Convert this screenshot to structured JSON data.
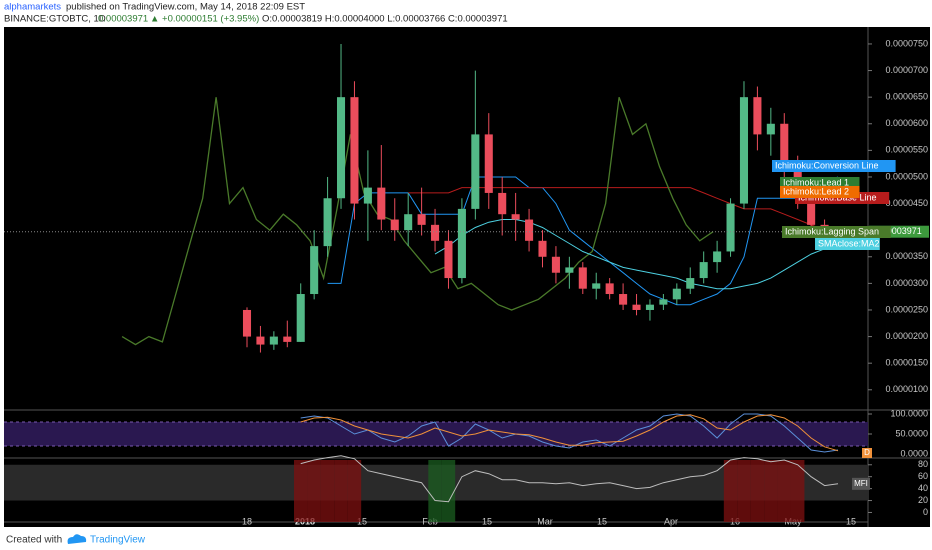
{
  "header": {
    "author": "alphamarkets",
    "published": "published on TradingView.com, May 14, 2018 22:09 EST",
    "symbol": "BINANCE:GTOBTC, 1D",
    "last": "0.00003971",
    "change": "▲ +0.00000151 (+3.95%)",
    "ohlc": "O:0.00003819 H:0.00004000 L:0.00003766 C:0.00003971"
  },
  "chart_data": {
    "type": "candlestick",
    "xtick_labels": [
      "18",
      "2018",
      "15",
      "Feb",
      "15",
      "Mar",
      "15",
      "Apr",
      "16",
      "May",
      "15"
    ],
    "open": [
      2.5e-05,
      2e-05,
      1.85e-05,
      2e-05,
      1.9e-05,
      2.8e-05,
      3.7e-05,
      4.6e-05,
      6.5e-05,
      4.5e-05,
      4.8e-05,
      4.2e-05,
      4e-05,
      4.3e-05,
      4.1e-05,
      3.8e-05,
      3.1e-05,
      4.4e-05,
      5.8e-05,
      4.7e-05,
      4.3e-05,
      4.2e-05,
      3.8e-05,
      3.5e-05,
      3.2e-05,
      3.3e-05,
      2.9e-05,
      3e-05,
      2.8e-05,
      2.6e-05,
      2.5e-05,
      2.6e-05,
      2.7e-05,
      2.9e-05,
      3.1e-05,
      3.4e-05,
      3.6e-05,
      4.5e-05,
      6.5e-05,
      5.8e-05,
      6e-05,
      5.2e-05,
      4.6e-05,
      4.1e-05,
      3.819e-05
    ],
    "high": [
      2.55e-05,
      2.2e-05,
      2.1e-05,
      2.3e-05,
      3e-05,
      4e-05,
      5e-05,
      7.5e-05,
      6.8e-05,
      5.5e-05,
      5.6e-05,
      4.6e-05,
      4.7e-05,
      4.8e-05,
      4.4e-05,
      4e-05,
      4.6e-05,
      7e-05,
      6.2e-05,
      5e-05,
      4.7e-05,
      4.4e-05,
      4e-05,
      3.7e-05,
      3.5e-05,
      3.4e-05,
      3.2e-05,
      3.1e-05,
      3e-05,
      2.8e-05,
      2.7e-05,
      2.8e-05,
      3e-05,
      3.3e-05,
      3.6e-05,
      3.8e-05,
      4.6e-05,
      6.8e-05,
      6.7e-05,
      6.3e-05,
      6.2e-05,
      5.4e-05,
      4.8e-05,
      4.2e-05,
      4e-05
    ],
    "low": [
      1.8e-05,
      1.7e-05,
      1.75e-05,
      1.8e-05,
      1.9e-05,
      2.7e-05,
      3.5e-05,
      4.4e-05,
      4.2e-05,
      3.8e-05,
      4e-05,
      3.8e-05,
      3.7e-05,
      3.9e-05,
      3.6e-05,
      2.9e-05,
      3e-05,
      4.2e-05,
      4.4e-05,
      3.9e-05,
      3.8e-05,
      3.6e-05,
      3.3e-05,
      3e-05,
      2.9e-05,
      2.8e-05,
      2.7e-05,
      2.7e-05,
      2.5e-05,
      2.4e-05,
      2.3e-05,
      2.5e-05,
      2.6e-05,
      2.8e-05,
      3e-05,
      3.2e-05,
      3.5e-05,
      4.4e-05,
      5.5e-05,
      5.4e-05,
      5e-05,
      4.4e-05,
      4e-05,
      3.7e-05,
      3.766e-05
    ],
    "close": [
      2e-05,
      1.85e-05,
      2e-05,
      1.9e-05,
      2.8e-05,
      3.7e-05,
      4.6e-05,
      6.5e-05,
      4.5e-05,
      4.8e-05,
      4.2e-05,
      4e-05,
      4.3e-05,
      4.1e-05,
      3.8e-05,
      3.1e-05,
      4.4e-05,
      5.8e-05,
      4.7e-05,
      4.3e-05,
      4.2e-05,
      3.8e-05,
      3.5e-05,
      3.2e-05,
      3.3e-05,
      2.9e-05,
      3e-05,
      2.8e-05,
      2.6e-05,
      2.5e-05,
      2.6e-05,
      2.7e-05,
      2.9e-05,
      3.1e-05,
      3.4e-05,
      3.6e-05,
      4.5e-05,
      6.5e-05,
      5.8e-05,
      6e-05,
      5.2e-05,
      4.6e-05,
      4.1e-05,
      3.8e-05,
      3.971e-05
    ],
    "up_color": "#53b987",
    "down_color": "#eb4d5c",
    "ylim": [
      6.2e-06,
      7.8e-05
    ],
    "yticks": [
      {
        "value": 1e-05,
        "label": "0.0000100"
      },
      {
        "value": 1.5e-05,
        "label": "0.0000150"
      },
      {
        "value": 2e-05,
        "label": "0.0000200"
      },
      {
        "value": 2.5e-05,
        "label": "0.0000250"
      },
      {
        "value": 3e-05,
        "label": "0.0000300"
      },
      {
        "value": 3.5e-05,
        "label": "0.0000350"
      },
      {
        "value": 4e-05,
        "label": "0.0000400"
      },
      {
        "value": 4.5e-05,
        "label": "0.0000450"
      },
      {
        "value": 5e-05,
        "label": "0.0000500"
      },
      {
        "value": 5.5e-05,
        "label": "0.0000550"
      },
      {
        "value": 6e-05,
        "label": "0.0000600"
      },
      {
        "value": 6.5e-05,
        "label": "0.0000650"
      },
      {
        "value": 7e-05,
        "label": "0.0000700"
      },
      {
        "value": 7.5e-05,
        "label": "0.0000750"
      }
    ],
    "last_price": {
      "value": 3.971e-05,
      "label": "0.00003971",
      "color": "#3d9a3d"
    },
    "lines": [
      {
        "name": "Ichimoku:Conversion Line",
        "color": "#2196f3",
        "values": [
          null,
          null,
          null,
          null,
          null,
          null,
          3e-05,
          3e-05,
          4.5e-05,
          4.7e-05,
          4.7e-05,
          4.7e-05,
          4.7e-05,
          4.3e-05,
          4.3e-05,
          4.3e-05,
          4.3e-05,
          5e-05,
          5e-05,
          5e-05,
          5e-05,
          4.8e-05,
          4.8e-05,
          4.5e-05,
          4e-05,
          3.8e-05,
          3.6e-05,
          3.4e-05,
          3.2e-05,
          3e-05,
          2.8e-05,
          2.7e-05,
          2.6e-05,
          2.6e-05,
          2.7e-05,
          2.8e-05,
          3e-05,
          3.5e-05,
          4.6e-05,
          4.6e-05,
          4.6e-05,
          4.6e-05,
          4.7e-05,
          4.9e-05,
          5e-05
        ]
      },
      {
        "name": "Ichimoku:Base Line",
        "color": "#b71c1c",
        "values": [
          null,
          null,
          null,
          null,
          null,
          null,
          null,
          null,
          null,
          null,
          null,
          null,
          4.7e-05,
          4.7e-05,
          4.7e-05,
          4.7e-05,
          4.8e-05,
          4.8e-05,
          4.8e-05,
          4.8e-05,
          4.8e-05,
          4.8e-05,
          4.8e-05,
          4.8e-05,
          4.8e-05,
          4.8e-05,
          4.8e-05,
          4.8e-05,
          4.8e-05,
          4.8e-05,
          4.8e-05,
          4.8e-05,
          4.8e-05,
          4.8e-05,
          4.7e-05,
          4.6e-05,
          4.5e-05,
          4.4e-05,
          4.4e-05,
          4.4e-05,
          4.3e-05,
          4.2e-05,
          4.1e-05,
          4e-05,
          3.8e-05
        ]
      },
      {
        "name": "Ichimoku:Lagging Span",
        "color": "#4a7a2a",
        "values": [
          2e-05,
          1.85e-05,
          2e-05,
          1.9e-05,
          2.8e-05,
          3.7e-05,
          4.6e-05,
          6.5e-05,
          4.5e-05,
          4.8e-05,
          4.2e-05,
          4e-05,
          4.3e-05,
          4.1e-05,
          3.8e-05,
          3.1e-05,
          4.4e-05,
          5.8e-05,
          4.7e-05,
          4.3e-05,
          4.2e-05,
          3.8e-05,
          3.5e-05,
          3.2e-05,
          3.3e-05,
          2.9e-05,
          3e-05,
          2.8e-05,
          2.6e-05,
          2.5e-05,
          2.6e-05,
          2.7e-05,
          2.9e-05,
          3.1e-05,
          3.4e-05,
          3.6e-05,
          4.5e-05,
          6.5e-05,
          5.8e-05,
          6e-05,
          5.2e-05,
          4.6e-05,
          4.1e-05,
          3.8e-05,
          3.971e-05
        ]
      },
      {
        "name": "SMAclose:MA2",
        "color": "#4dd0e1",
        "values": [
          null,
          null,
          null,
          null,
          null,
          null,
          null,
          null,
          null,
          null,
          null,
          null,
          null,
          null,
          3.55e-05,
          3.7e-05,
          3.9e-05,
          4.05e-05,
          4.15e-05,
          4.2e-05,
          4.2e-05,
          4.15e-05,
          4.05e-05,
          3.9e-05,
          3.75e-05,
          3.6e-05,
          3.5e-05,
          3.4e-05,
          3.3e-05,
          3.25e-05,
          3.2e-05,
          3.15e-05,
          3.1e-05,
          3e-05,
          2.95e-05,
          2.9e-05,
          2.9e-05,
          2.95e-05,
          3e-05,
          3.1e-05,
          3.25e-05,
          3.4e-05,
          3.55e-05,
          3.65e-05,
          3.7e-05
        ]
      }
    ],
    "cloud_tags": [
      {
        "name": "Ichimoku:Lead 1",
        "color": "#2e7d32"
      },
      {
        "name": "Ichimoku:Lead 2",
        "color": "#ef6c00"
      }
    ]
  },
  "rsi": {
    "label": "D",
    "ylim": [
      -10,
      105
    ],
    "yticks": [
      {
        "value": 100,
        "label": "100.0000"
      },
      {
        "value": 50,
        "label": "50.0000"
      },
      {
        "value": 0,
        "label": "0.0000"
      }
    ],
    "band": [
      20,
      80
    ],
    "band_color": "#2a1850",
    "series": [
      {
        "color": "#5b8fd9",
        "values": [
          null,
          null,
          null,
          null,
          90,
          95,
          90,
          70,
          50,
          60,
          40,
          30,
          45,
          70,
          80,
          20,
          40,
          75,
          60,
          40,
          50,
          45,
          30,
          20,
          15,
          30,
          35,
          20,
          40,
          60,
          70,
          95,
          100,
          95,
          70,
          40,
          75,
          100,
          100,
          95,
          70,
          40,
          10,
          5,
          10
        ]
      },
      {
        "color": "#f0913a",
        "values": [
          null,
          null,
          null,
          null,
          80,
          90,
          92,
          85,
          70,
          60,
          50,
          45,
          40,
          50,
          65,
          55,
          45,
          50,
          60,
          55,
          50,
          48,
          40,
          30,
          22,
          22,
          28,
          30,
          32,
          45,
          60,
          80,
          95,
          98,
          88,
          65,
          60,
          80,
          95,
          98,
          90,
          70,
          40,
          18,
          8
        ]
      }
    ]
  },
  "mfi": {
    "label": "MFI",
    "ylim": [
      -16,
      88
    ],
    "yticks": [
      0,
      20,
      40,
      60,
      80
    ],
    "overbought": 80,
    "oversold": 20,
    "color": "#bdbdbd",
    "values": [
      null,
      null,
      null,
      null,
      82,
      88,
      92,
      95,
      90,
      70,
      65,
      60,
      55,
      50,
      20,
      18,
      60,
      70,
      65,
      55,
      55,
      50,
      50,
      48,
      50,
      45,
      48,
      50,
      45,
      40,
      42,
      50,
      55,
      60,
      62,
      70,
      88,
      92,
      90,
      85,
      88,
      80,
      60,
      45,
      48
    ]
  },
  "footer": {
    "created": "Created with",
    "brand": "TradingView"
  }
}
